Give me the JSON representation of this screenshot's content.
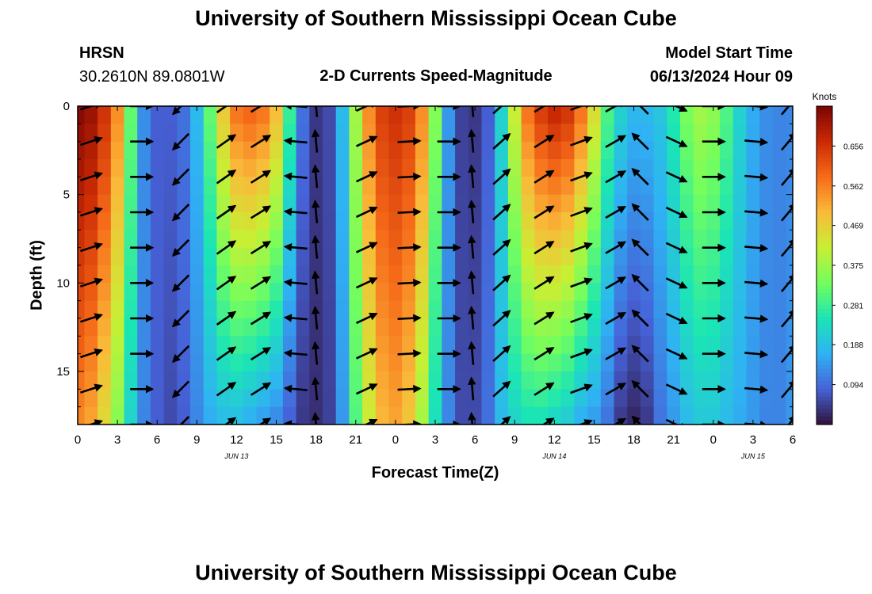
{
  "page": {
    "title": "University of Southern Mississippi Ocean Cube",
    "title_repeat": "University of Southern Mississippi Ocean Cube"
  },
  "header": {
    "station": "HRSN",
    "coords": "30.2610N  89.0801W",
    "plot_title": "2-D Currents Speed-Magnitude",
    "model_label": "Model Start Time",
    "model_time": "06/13/2024 Hour 09"
  },
  "chart_data": {
    "type": "heatmap",
    "title": "2-D Currents Speed-Magnitude",
    "xlabel": "Forecast Time(Z)",
    "ylabel": "Depth (ft)",
    "x_range_hours": [
      0,
      54
    ],
    "y_range_ft": [
      0,
      18
    ],
    "x_ticks": [
      {
        "h": 0,
        "label": "0"
      },
      {
        "h": 3,
        "label": "3"
      },
      {
        "h": 6,
        "label": "6"
      },
      {
        "h": 9,
        "label": "9"
      },
      {
        "h": 12,
        "label": "12"
      },
      {
        "h": 15,
        "label": "15"
      },
      {
        "h": 18,
        "label": "18"
      },
      {
        "h": 21,
        "label": "21"
      },
      {
        "h": 24,
        "label": "0"
      },
      {
        "h": 27,
        "label": "3"
      },
      {
        "h": 30,
        "label": "6"
      },
      {
        "h": 33,
        "label": "9"
      },
      {
        "h": 36,
        "label": "12"
      },
      {
        "h": 39,
        "label": "15"
      },
      {
        "h": 42,
        "label": "18"
      },
      {
        "h": 45,
        "label": "21"
      },
      {
        "h": 48,
        "label": "0"
      },
      {
        "h": 51,
        "label": "3"
      },
      {
        "h": 54,
        "label": "6"
      }
    ],
    "y_ticks": [
      {
        "d": 0,
        "label": "0"
      },
      {
        "d": 5,
        "label": "5"
      },
      {
        "d": 10,
        "label": "10"
      },
      {
        "d": 15,
        "label": "15"
      }
    ],
    "date_labels": [
      {
        "h": 12,
        "label": "JUN 13"
      },
      {
        "h": 36,
        "label": "JUN 14"
      },
      {
        "h": 51,
        "label": "JUN 15"
      }
    ],
    "colorbar": {
      "title": "Knots",
      "min": 0.0,
      "max": 0.75,
      "ticks": [
        "0.656",
        "0.562",
        "0.469",
        "0.375",
        "0.281",
        "0.188",
        "0.094"
      ],
      "colormap": [
        "#30123b",
        "#4662d8",
        "#2fb2f4",
        "#1be5b5",
        "#74fe5d",
        "#c8ef34",
        "#faba39",
        "#f66b19",
        "#ca2a04",
        "#7a0403"
      ]
    },
    "speed_profile": {
      "hours": [
        0,
        1,
        2,
        3,
        4,
        5,
        6,
        7,
        8,
        9,
        10,
        11,
        12,
        13,
        14,
        15,
        16,
        17,
        18,
        19,
        20,
        21,
        22,
        23,
        24,
        25,
        26,
        27,
        28,
        29,
        30,
        31,
        32,
        33,
        34,
        35,
        36,
        37,
        38,
        39,
        40,
        41,
        42,
        43,
        44,
        45,
        46,
        47,
        48,
        49,
        50,
        51,
        52,
        53,
        54
      ],
      "surface": [
        0.74,
        0.72,
        0.66,
        0.55,
        0.32,
        0.13,
        0.08,
        0.08,
        0.1,
        0.18,
        0.32,
        0.48,
        0.58,
        0.6,
        0.58,
        0.5,
        0.28,
        0.1,
        0.04,
        0.06,
        0.18,
        0.38,
        0.55,
        0.64,
        0.66,
        0.64,
        0.55,
        0.35,
        0.14,
        0.05,
        0.04,
        0.08,
        0.22,
        0.42,
        0.58,
        0.65,
        0.68,
        0.66,
        0.58,
        0.45,
        0.3,
        0.22,
        0.18,
        0.18,
        0.2,
        0.26,
        0.34,
        0.38,
        0.36,
        0.3,
        0.22,
        0.16,
        0.13,
        0.12,
        0.12
      ],
      "bottom": [
        0.55,
        0.52,
        0.45,
        0.35,
        0.22,
        0.12,
        0.08,
        0.06,
        0.08,
        0.12,
        0.16,
        0.18,
        0.18,
        0.16,
        0.14,
        0.12,
        0.08,
        0.04,
        0.03,
        0.05,
        0.14,
        0.3,
        0.42,
        0.5,
        0.52,
        0.48,
        0.38,
        0.24,
        0.12,
        0.06,
        0.06,
        0.1,
        0.18,
        0.22,
        0.24,
        0.24,
        0.22,
        0.2,
        0.16,
        0.14,
        0.1,
        0.04,
        0.02,
        0.04,
        0.1,
        0.14,
        0.18,
        0.2,
        0.2,
        0.18,
        0.16,
        0.14,
        0.12,
        0.12,
        0.14
      ]
    },
    "vector_hours": [
      1,
      4.8,
      7.8,
      11.2,
      13.8,
      16.5,
      18,
      21.8,
      25,
      28,
      29.8,
      32,
      35.2,
      38,
      40.6,
      42.5,
      45.2,
      48,
      51.2,
      53.7
    ],
    "vector_depths": [
      0,
      2,
      4,
      6,
      8,
      10,
      12,
      14,
      16,
      18
    ],
    "vector_directions_deg": [
      18,
      0,
      -135,
      35,
      32,
      175,
      95,
      25,
      3,
      0,
      95,
      42,
      32,
      20,
      30,
      135,
      -25,
      0,
      -5,
      50
    ]
  }
}
